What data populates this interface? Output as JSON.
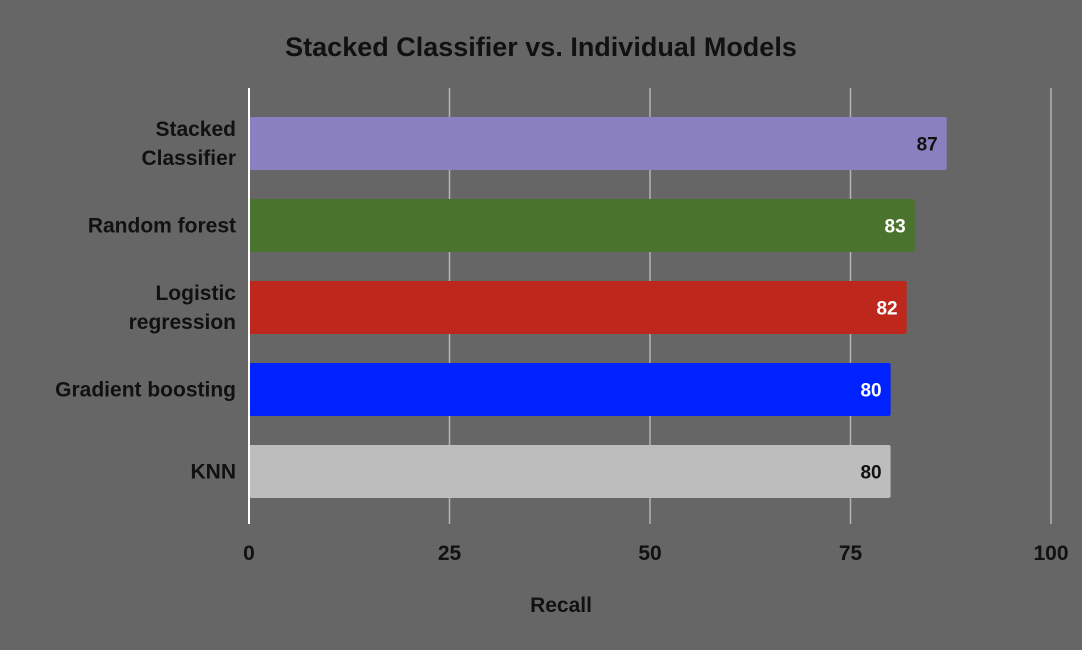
{
  "chart_data": {
    "type": "bar",
    "orientation": "horizontal",
    "title": "Stacked Classifier vs. Individual Models",
    "xlabel": "Recall",
    "ylabel": "",
    "xlim": [
      0,
      100
    ],
    "ticks": [
      "0",
      "25",
      "50",
      "75",
      "100"
    ],
    "tick_values": [
      0,
      25,
      50,
      75,
      100
    ],
    "grid": true,
    "legend": "none",
    "categories": [
      "Stacked\nClassifier",
      "Random forest",
      "Logistic\nregression",
      "Gradient boosting",
      "KNN"
    ],
    "values": [
      87,
      83,
      82,
      80,
      80
    ],
    "data_labels": [
      "87",
      "83",
      "82",
      "80",
      "80"
    ],
    "bar_colors": [
      "#8b80bf",
      "#4a732e",
      "#be271c",
      "#0022ff",
      "#bdbdbd"
    ],
    "label_colors": [
      "#111111",
      "#ffffff",
      "#ffffff",
      "#ffffff",
      "#111111"
    ],
    "background_color": "#666666",
    "grid_color": "#b4b4b4",
    "axis_color": "#ffffff"
  }
}
